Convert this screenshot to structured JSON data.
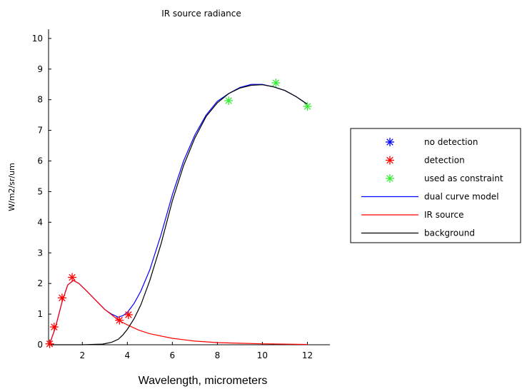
{
  "chart_data": {
    "type": "line",
    "title": "IR source radiance",
    "xlabel": "Wavelength, micrometers",
    "ylabel": "W/m2/sr/um",
    "xlim": [
      0.5,
      13
    ],
    "ylim": [
      0,
      10.3
    ],
    "xticks": [
      2,
      4,
      6,
      8,
      10,
      12
    ],
    "yticks": [
      0,
      1,
      2,
      3,
      4,
      5,
      6,
      7,
      8,
      9,
      10
    ],
    "grid": false,
    "legend_position": "right",
    "series": [
      {
        "name": "dual curve model",
        "kind": "line",
        "color": "#0000ff",
        "x": [
          0.55,
          0.8,
          1.1,
          1.35,
          1.6,
          1.85,
          2.2,
          2.6,
          3.0,
          3.3,
          3.6,
          3.8,
          4.0,
          4.3,
          4.6,
          5.0,
          5.5,
          6.0,
          6.5,
          7.0,
          7.5,
          8.0,
          8.5,
          9.0,
          9.5,
          10.0,
          10.5,
          11.0,
          11.5,
          12.0
        ],
        "y": [
          0.03,
          0.55,
          1.4,
          1.95,
          2.1,
          2.0,
          1.75,
          1.45,
          1.15,
          1.0,
          0.9,
          0.95,
          1.05,
          1.35,
          1.75,
          2.45,
          3.6,
          4.9,
          6.0,
          6.85,
          7.5,
          7.95,
          8.2,
          8.4,
          8.5,
          8.5,
          8.42,
          8.3,
          8.1,
          7.85
        ]
      },
      {
        "name": "IR source",
        "kind": "line",
        "color": "#ff0000",
        "x": [
          0.55,
          0.8,
          1.1,
          1.35,
          1.6,
          1.85,
          2.2,
          2.6,
          3.0,
          3.3,
          3.6,
          4.0,
          4.5,
          5.0,
          6.0,
          7.0,
          8.0,
          9.0,
          10.0,
          11.0,
          12.0
        ],
        "y": [
          0.03,
          0.55,
          1.4,
          1.95,
          2.1,
          2.0,
          1.75,
          1.45,
          1.15,
          0.98,
          0.8,
          0.65,
          0.48,
          0.36,
          0.21,
          0.12,
          0.07,
          0.05,
          0.03,
          0.02,
          0.01
        ]
      },
      {
        "name": "background",
        "kind": "line",
        "color": "#000000",
        "x": [
          0.55,
          1.0,
          2.0,
          2.9,
          3.3,
          3.6,
          3.8,
          4.0,
          4.3,
          4.6,
          5.0,
          5.5,
          6.0,
          6.5,
          7.0,
          7.5,
          8.0,
          8.5,
          9.0,
          9.5,
          10.0,
          10.5,
          11.0,
          11.5,
          12.0
        ],
        "y": [
          0,
          0,
          0,
          0.02,
          0.08,
          0.18,
          0.32,
          0.5,
          0.85,
          1.3,
          2.1,
          3.3,
          4.7,
          5.85,
          6.75,
          7.45,
          7.9,
          8.2,
          8.38,
          8.47,
          8.49,
          8.42,
          8.3,
          8.1,
          7.85
        ]
      },
      {
        "name": "detection",
        "kind": "marker",
        "color": "#ff0000",
        "x": [
          0.55,
          0.75,
          1.1,
          1.55,
          3.65,
          4.05
        ],
        "y": [
          0.03,
          0.58,
          1.53,
          2.2,
          0.8,
          0.98
        ]
      },
      {
        "name": "used as constraint",
        "kind": "marker",
        "color": "#33ee33",
        "x": [
          8.5,
          10.6,
          12.0
        ],
        "y": [
          7.97,
          8.55,
          7.78
        ]
      },
      {
        "name": "no detection",
        "kind": "marker",
        "color": "#0000ff",
        "x": [],
        "y": []
      }
    ],
    "legend": [
      {
        "label": "no detection",
        "kind": "marker",
        "color": "#0000ff"
      },
      {
        "label": "detection",
        "kind": "marker",
        "color": "#ff0000"
      },
      {
        "label": "used as constraint",
        "kind": "marker",
        "color": "#33ee33"
      },
      {
        "label": "dual curve model",
        "kind": "line",
        "color": "#0000ff"
      },
      {
        "label": "IR source",
        "kind": "line",
        "color": "#ff0000"
      },
      {
        "label": "background",
        "kind": "line",
        "color": "#000000"
      }
    ]
  }
}
